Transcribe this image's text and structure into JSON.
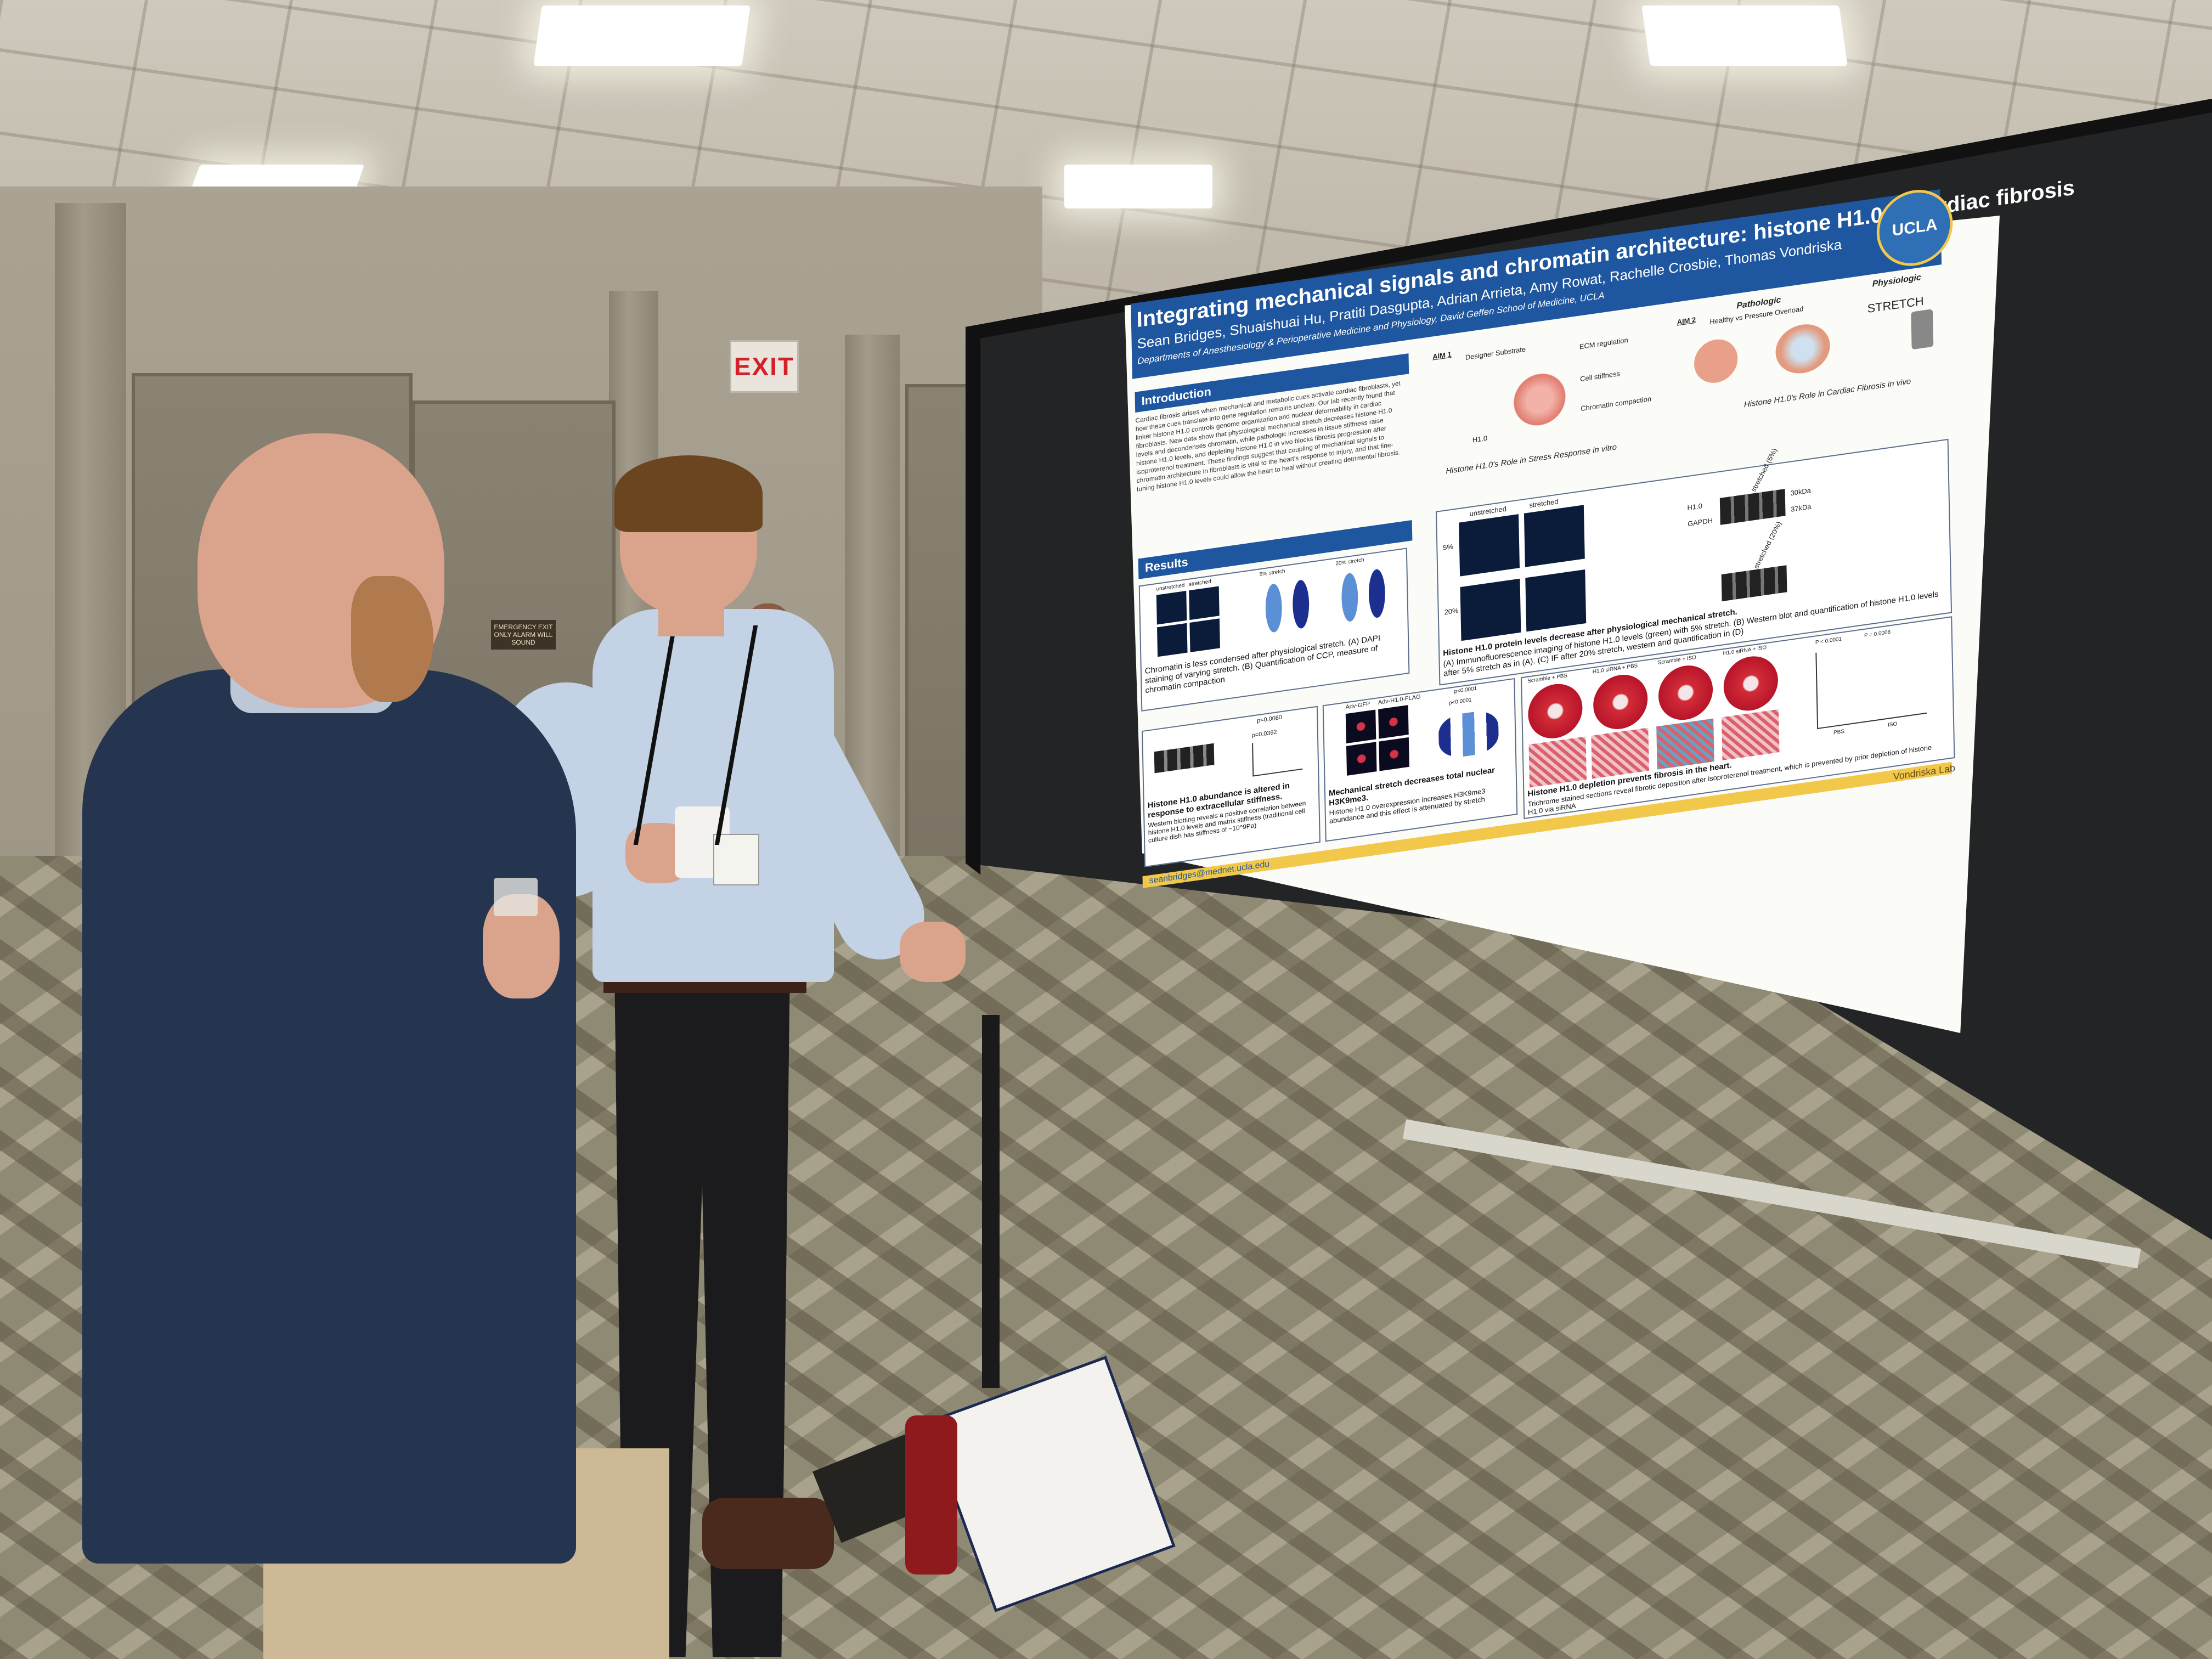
{
  "scene": {
    "exit_sign": "EXIT",
    "placard_left": "EMERGENCY EXIT ONLY ALARM WILL SOUND"
  },
  "poster": {
    "title": "Integrating mechanical signals and chromatin architecture: histone H1.0 in cardiac fibrosis",
    "authors": "Sean Bridges, Shuaishuai Hu, Pratiti Dasgupta, Adrian Arrieta, Amy Rowat, Rachelle Crosbie, Thomas Vondriska",
    "affiliation": "Departments of Anesthesiology & Perioperative Medicine and Physiology, David Geffen School of Medicine, UCLA",
    "logo": "UCLA",
    "introduction": {
      "heading": "Introduction",
      "text": "Cardiac fibrosis arises when mechanical and metabolic cues activate cardiac fibroblasts, yet how these cues translate into gene regulation remains unclear. Our lab recently found that linker histone H1.0 controls genome organization and nuclear deformability in cardiac fibroblasts. New data show that physiological mechanical stretch decreases histone H1.0 levels and decondenses chromatin, while pathologic increases in tissue stiffness raise histone H1.0 levels, and depleting histone H1.0 in vivo blocks fibrosis progression after isoproterenol treatment. These findings suggest that coupling of mechanical signals to chromatin architecture in fibroblasts is vital to the heart's response to injury, and that fine-tuning histone H1.0 levels could allow the heart to heal without creating detrimental fibrosis."
    },
    "aim1": {
      "label": "AIM 1",
      "items": [
        "Designer Substrate",
        "ECM regulation",
        "Cell stiffness",
        "Chromatin compaction",
        "H1.0"
      ],
      "caption": "Histone H1.0's Role in Stress Response in vitro"
    },
    "aim2": {
      "label": "AIM 2",
      "pathologic": "Pathologic",
      "pathologic_sub": "Healthy vs Pressure Overload",
      "physiologic": "Physiologic",
      "stretch": "STRETCH",
      "caption": "Histone H1.0's Role in Cardiac Fibrosis in vivo"
    },
    "results_heading": "Results",
    "panel_chromatin": {
      "labels": [
        "unstretched",
        "stretched",
        "5% stretch",
        "20% stretch"
      ],
      "caption": "Chromatin is less condensed after physiological stretch. (A) DAPI staining of varying stretch. (B) Quantification of CCP, measure of chromatin compaction"
    },
    "panel_h1_protein": {
      "labels": [
        "unstretched",
        "stretched",
        "5%",
        "20%",
        "H1.0",
        "GAPDH",
        "30kDa",
        "37kDa",
        "unstretched",
        "stretched (5%)",
        "stretched (20%)"
      ],
      "caption_bold": "Histone H1.0 protein levels decrease after physiological mechanical stretch.",
      "caption": "(A) Immunofluorescence imaging of histone H1.0 levels (green) with 5% stretch. (B) Western blot and quantification of histone H1.0 levels after 5% stretch as in (A). (C) IF after 20% stretch, western and quantification in (D)"
    },
    "panel_stiffness": {
      "pvalues": [
        "p=0.0080",
        "p=0.0392"
      ],
      "caption_bold": "Histone H1.0 abundance is altered in response to extracellular stiffness.",
      "caption": "Western blotting reveals a positive correlation between histone H1.0 levels and matrix stiffness (traditional cell culture dish has stiffness of ~10^9Pa)"
    },
    "panel_h3k9": {
      "labels": [
        "Adv-GFP",
        "Adv-H1.0-FLAG",
        "Unstretched",
        "Stretched (20%)"
      ],
      "pvalues": [
        "p<0.0001",
        "p<0.0001",
        "p<0.0001",
        "p<0.0001"
      ],
      "caption_bold": "Mechanical stretch decreases total nuclear H3K9me3.",
      "caption": "Histone H1.0 overexpression increases H3K9me3 abundance and this effect is attenuated by stretch"
    },
    "panel_heart": {
      "labels": [
        "Scramble + PBS",
        "H1.0 siRNA + PBS",
        "Scramble + ISO",
        "H1.0 siRNA + ISO",
        "PBS",
        "ISO"
      ],
      "pvalues": [
        "P < 0.0001",
        "P = 0.0008"
      ],
      "caption_bold": "Histone H1.0 depletion prevents fibrosis in the heart.",
      "caption": "Trichrome stained sections reveal fibrotic deposition after isoproterenol treatment, which is prevented by prior depletion of histone H1.0 via siRNA"
    },
    "email": "seanbridges@mednet.ucla.edu",
    "lab": "Vondriska Lab"
  },
  "colors": {
    "header_blue": "#1e56a0",
    "footer_gold": "#f2c84a",
    "board": "#222426"
  }
}
